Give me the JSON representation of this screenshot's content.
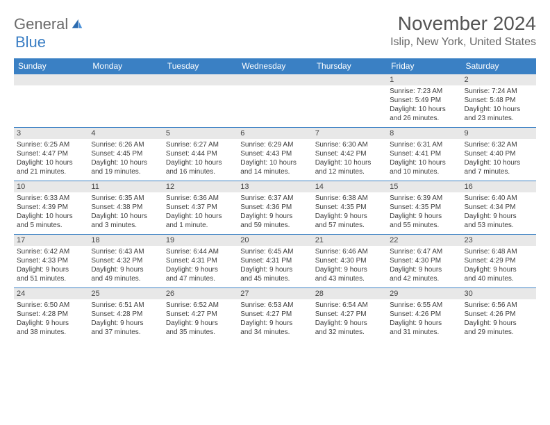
{
  "logo": {
    "part1": "General",
    "part2": "Blue"
  },
  "title": "November 2024",
  "location": "Islip, New York, United States",
  "colors": {
    "header_bg": "#3a80c4",
    "header_text": "#ffffff",
    "daynum_bg": "#e8e8e8",
    "border": "#3a80c4",
    "title_color": "#555555",
    "location_color": "#666666",
    "body_text": "#3d3d3d"
  },
  "day_names": [
    "Sunday",
    "Monday",
    "Tuesday",
    "Wednesday",
    "Thursday",
    "Friday",
    "Saturday"
  ],
  "weeks": [
    [
      {
        "blank": true
      },
      {
        "blank": true
      },
      {
        "blank": true
      },
      {
        "blank": true
      },
      {
        "blank": true
      },
      {
        "num": "1",
        "sunrise": "Sunrise: 7:23 AM",
        "sunset": "Sunset: 5:49 PM",
        "daylight1": "Daylight: 10 hours",
        "daylight2": "and 26 minutes."
      },
      {
        "num": "2",
        "sunrise": "Sunrise: 7:24 AM",
        "sunset": "Sunset: 5:48 PM",
        "daylight1": "Daylight: 10 hours",
        "daylight2": "and 23 minutes."
      }
    ],
    [
      {
        "num": "3",
        "sunrise": "Sunrise: 6:25 AM",
        "sunset": "Sunset: 4:47 PM",
        "daylight1": "Daylight: 10 hours",
        "daylight2": "and 21 minutes."
      },
      {
        "num": "4",
        "sunrise": "Sunrise: 6:26 AM",
        "sunset": "Sunset: 4:45 PM",
        "daylight1": "Daylight: 10 hours",
        "daylight2": "and 19 minutes."
      },
      {
        "num": "5",
        "sunrise": "Sunrise: 6:27 AM",
        "sunset": "Sunset: 4:44 PM",
        "daylight1": "Daylight: 10 hours",
        "daylight2": "and 16 minutes."
      },
      {
        "num": "6",
        "sunrise": "Sunrise: 6:29 AM",
        "sunset": "Sunset: 4:43 PM",
        "daylight1": "Daylight: 10 hours",
        "daylight2": "and 14 minutes."
      },
      {
        "num": "7",
        "sunrise": "Sunrise: 6:30 AM",
        "sunset": "Sunset: 4:42 PM",
        "daylight1": "Daylight: 10 hours",
        "daylight2": "and 12 minutes."
      },
      {
        "num": "8",
        "sunrise": "Sunrise: 6:31 AM",
        "sunset": "Sunset: 4:41 PM",
        "daylight1": "Daylight: 10 hours",
        "daylight2": "and 10 minutes."
      },
      {
        "num": "9",
        "sunrise": "Sunrise: 6:32 AM",
        "sunset": "Sunset: 4:40 PM",
        "daylight1": "Daylight: 10 hours",
        "daylight2": "and 7 minutes."
      }
    ],
    [
      {
        "num": "10",
        "sunrise": "Sunrise: 6:33 AM",
        "sunset": "Sunset: 4:39 PM",
        "daylight1": "Daylight: 10 hours",
        "daylight2": "and 5 minutes."
      },
      {
        "num": "11",
        "sunrise": "Sunrise: 6:35 AM",
        "sunset": "Sunset: 4:38 PM",
        "daylight1": "Daylight: 10 hours",
        "daylight2": "and 3 minutes."
      },
      {
        "num": "12",
        "sunrise": "Sunrise: 6:36 AM",
        "sunset": "Sunset: 4:37 PM",
        "daylight1": "Daylight: 10 hours",
        "daylight2": "and 1 minute."
      },
      {
        "num": "13",
        "sunrise": "Sunrise: 6:37 AM",
        "sunset": "Sunset: 4:36 PM",
        "daylight1": "Daylight: 9 hours",
        "daylight2": "and 59 minutes."
      },
      {
        "num": "14",
        "sunrise": "Sunrise: 6:38 AM",
        "sunset": "Sunset: 4:35 PM",
        "daylight1": "Daylight: 9 hours",
        "daylight2": "and 57 minutes."
      },
      {
        "num": "15",
        "sunrise": "Sunrise: 6:39 AM",
        "sunset": "Sunset: 4:35 PM",
        "daylight1": "Daylight: 9 hours",
        "daylight2": "and 55 minutes."
      },
      {
        "num": "16",
        "sunrise": "Sunrise: 6:40 AM",
        "sunset": "Sunset: 4:34 PM",
        "daylight1": "Daylight: 9 hours",
        "daylight2": "and 53 minutes."
      }
    ],
    [
      {
        "num": "17",
        "sunrise": "Sunrise: 6:42 AM",
        "sunset": "Sunset: 4:33 PM",
        "daylight1": "Daylight: 9 hours",
        "daylight2": "and 51 minutes."
      },
      {
        "num": "18",
        "sunrise": "Sunrise: 6:43 AM",
        "sunset": "Sunset: 4:32 PM",
        "daylight1": "Daylight: 9 hours",
        "daylight2": "and 49 minutes."
      },
      {
        "num": "19",
        "sunrise": "Sunrise: 6:44 AM",
        "sunset": "Sunset: 4:31 PM",
        "daylight1": "Daylight: 9 hours",
        "daylight2": "and 47 minutes."
      },
      {
        "num": "20",
        "sunrise": "Sunrise: 6:45 AM",
        "sunset": "Sunset: 4:31 PM",
        "daylight1": "Daylight: 9 hours",
        "daylight2": "and 45 minutes."
      },
      {
        "num": "21",
        "sunrise": "Sunrise: 6:46 AM",
        "sunset": "Sunset: 4:30 PM",
        "daylight1": "Daylight: 9 hours",
        "daylight2": "and 43 minutes."
      },
      {
        "num": "22",
        "sunrise": "Sunrise: 6:47 AM",
        "sunset": "Sunset: 4:30 PM",
        "daylight1": "Daylight: 9 hours",
        "daylight2": "and 42 minutes."
      },
      {
        "num": "23",
        "sunrise": "Sunrise: 6:48 AM",
        "sunset": "Sunset: 4:29 PM",
        "daylight1": "Daylight: 9 hours",
        "daylight2": "and 40 minutes."
      }
    ],
    [
      {
        "num": "24",
        "sunrise": "Sunrise: 6:50 AM",
        "sunset": "Sunset: 4:28 PM",
        "daylight1": "Daylight: 9 hours",
        "daylight2": "and 38 minutes."
      },
      {
        "num": "25",
        "sunrise": "Sunrise: 6:51 AM",
        "sunset": "Sunset: 4:28 PM",
        "daylight1": "Daylight: 9 hours",
        "daylight2": "and 37 minutes."
      },
      {
        "num": "26",
        "sunrise": "Sunrise: 6:52 AM",
        "sunset": "Sunset: 4:27 PM",
        "daylight1": "Daylight: 9 hours",
        "daylight2": "and 35 minutes."
      },
      {
        "num": "27",
        "sunrise": "Sunrise: 6:53 AM",
        "sunset": "Sunset: 4:27 PM",
        "daylight1": "Daylight: 9 hours",
        "daylight2": "and 34 minutes."
      },
      {
        "num": "28",
        "sunrise": "Sunrise: 6:54 AM",
        "sunset": "Sunset: 4:27 PM",
        "daylight1": "Daylight: 9 hours",
        "daylight2": "and 32 minutes."
      },
      {
        "num": "29",
        "sunrise": "Sunrise: 6:55 AM",
        "sunset": "Sunset: 4:26 PM",
        "daylight1": "Daylight: 9 hours",
        "daylight2": "and 31 minutes."
      },
      {
        "num": "30",
        "sunrise": "Sunrise: 6:56 AM",
        "sunset": "Sunset: 4:26 PM",
        "daylight1": "Daylight: 9 hours",
        "daylight2": "and 29 minutes."
      }
    ]
  ]
}
